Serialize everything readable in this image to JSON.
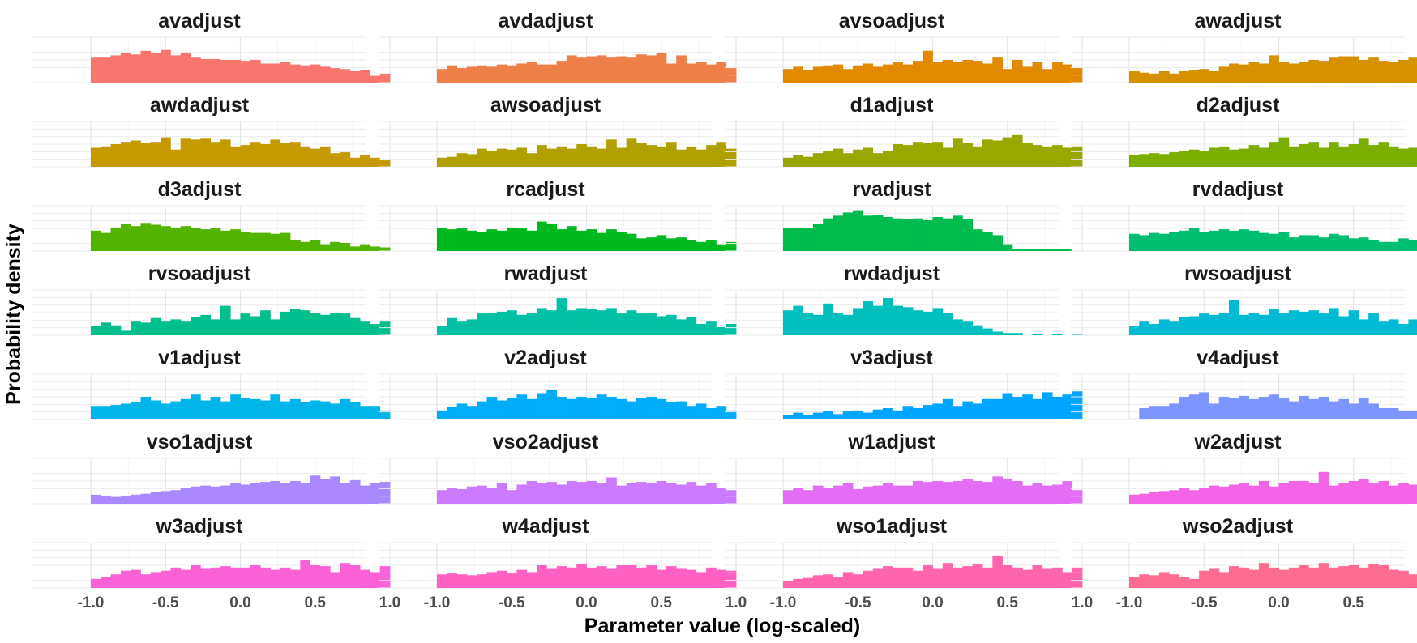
{
  "chart_data": {
    "type": "bar",
    "xlabel": "Parameter value (log-scaled)",
    "ylabel": "Probability density",
    "xlim": [
      -1.0,
      1.0
    ],
    "x_ticks": [
      "-1.0",
      "-0.5",
      "0.0",
      "0.5",
      "1.0"
    ],
    "bins": 30,
    "grid": true,
    "legend": "none",
    "facets": [
      {
        "name": "avadjust",
        "color": "#F8766D",
        "values": [
          0.55,
          0.55,
          0.6,
          0.65,
          0.62,
          0.7,
          0.65,
          0.72,
          0.6,
          0.65,
          0.55,
          0.52,
          0.52,
          0.5,
          0.5,
          0.48,
          0.5,
          0.42,
          0.42,
          0.45,
          0.4,
          0.38,
          0.4,
          0.35,
          0.32,
          0.3,
          0.25,
          0.28,
          0.15,
          0.2
        ]
      },
      {
        "name": "avdadjust",
        "color": "#EF7F49",
        "values": [
          0.3,
          0.38,
          0.32,
          0.35,
          0.38,
          0.35,
          0.4,
          0.38,
          0.42,
          0.45,
          0.4,
          0.4,
          0.48,
          0.6,
          0.55,
          0.58,
          0.6,
          0.55,
          0.58,
          0.55,
          0.62,
          0.6,
          0.65,
          0.42,
          0.6,
          0.42,
          0.45,
          0.4,
          0.45,
          0.32
        ]
      },
      {
        "name": "avsoadjust",
        "color": "#E38900",
        "values": [
          0.3,
          0.35,
          0.28,
          0.35,
          0.38,
          0.4,
          0.3,
          0.38,
          0.42,
          0.35,
          0.4,
          0.45,
          0.4,
          0.48,
          0.7,
          0.45,
          0.5,
          0.45,
          0.5,
          0.48,
          0.42,
          0.55,
          0.3,
          0.5,
          0.35,
          0.45,
          0.3,
          0.45,
          0.4,
          0.32
        ]
      },
      {
        "name": "awadjust",
        "color": "#D69100",
        "values": [
          0.25,
          0.22,
          0.2,
          0.25,
          0.2,
          0.25,
          0.28,
          0.3,
          0.25,
          0.35,
          0.42,
          0.4,
          0.45,
          0.42,
          0.6,
          0.45,
          0.42,
          0.45,
          0.5,
          0.48,
          0.55,
          0.58,
          0.58,
          0.5,
          0.55,
          0.48,
          0.45,
          0.5,
          0.55,
          0.35
        ]
      },
      {
        "name": "awdadjust",
        "color": "#C49A00",
        "values": [
          0.42,
          0.45,
          0.5,
          0.55,
          0.58,
          0.52,
          0.55,
          0.65,
          0.38,
          0.62,
          0.6,
          0.62,
          0.55,
          0.6,
          0.45,
          0.48,
          0.55,
          0.5,
          0.6,
          0.52,
          0.55,
          0.45,
          0.4,
          0.45,
          0.3,
          0.32,
          0.2,
          0.25,
          0.2,
          0.15
        ]
      },
      {
        "name": "awsoadjust",
        "color": "#B0A100",
        "values": [
          0.2,
          0.22,
          0.3,
          0.28,
          0.4,
          0.35,
          0.4,
          0.38,
          0.42,
          0.3,
          0.48,
          0.4,
          0.45,
          0.4,
          0.5,
          0.45,
          0.4,
          0.6,
          0.42,
          0.62,
          0.52,
          0.48,
          0.45,
          0.55,
          0.38,
          0.45,
          0.38,
          0.48,
          0.55,
          0.4
        ]
      },
      {
        "name": "d1adjust",
        "color": "#99A800",
        "values": [
          0.2,
          0.25,
          0.22,
          0.3,
          0.35,
          0.4,
          0.3,
          0.38,
          0.42,
          0.3,
          0.35,
          0.5,
          0.48,
          0.55,
          0.52,
          0.55,
          0.42,
          0.62,
          0.52,
          0.45,
          0.6,
          0.58,
          0.65,
          0.7,
          0.52,
          0.48,
          0.45,
          0.48,
          0.42,
          0.45
        ]
      },
      {
        "name": "d2adjust",
        "color": "#7CAE00",
        "values": [
          0.25,
          0.28,
          0.3,
          0.28,
          0.32,
          0.35,
          0.38,
          0.35,
          0.42,
          0.45,
          0.38,
          0.4,
          0.48,
          0.42,
          0.55,
          0.65,
          0.45,
          0.5,
          0.55,
          0.42,
          0.55,
          0.45,
          0.5,
          0.62,
          0.48,
          0.55,
          0.45,
          0.4,
          0.42,
          0.3
        ]
      },
      {
        "name": "d3adjust",
        "color": "#53B400",
        "values": [
          0.45,
          0.4,
          0.52,
          0.6,
          0.55,
          0.62,
          0.58,
          0.55,
          0.52,
          0.55,
          0.5,
          0.48,
          0.5,
          0.45,
          0.48,
          0.42,
          0.4,
          0.4,
          0.38,
          0.4,
          0.25,
          0.2,
          0.25,
          0.15,
          0.2,
          0.18,
          0.1,
          0.15,
          0.1,
          0.08
        ]
      },
      {
        "name": "rcadjust",
        "color": "#00B81F",
        "values": [
          0.5,
          0.48,
          0.5,
          0.45,
          0.42,
          0.48,
          0.45,
          0.52,
          0.5,
          0.45,
          0.65,
          0.6,
          0.48,
          0.55,
          0.45,
          0.48,
          0.4,
          0.48,
          0.42,
          0.38,
          0.28,
          0.3,
          0.35,
          0.28,
          0.3,
          0.25,
          0.2,
          0.25,
          0.15,
          0.2
        ]
      },
      {
        "name": "rvadjust",
        "color": "#00BB4E",
        "values": [
          0.5,
          0.52,
          0.5,
          0.6,
          0.72,
          0.78,
          0.85,
          0.9,
          0.78,
          0.8,
          0.75,
          0.72,
          0.7,
          0.72,
          0.68,
          0.75,
          0.72,
          0.78,
          0.7,
          0.48,
          0.42,
          0.35,
          0.15,
          0.05,
          0.05,
          0.05,
          0.05,
          0.05,
          0.05,
          0.0
        ]
      },
      {
        "name": "rvdadjust",
        "color": "#00BE70",
        "values": [
          0.38,
          0.35,
          0.4,
          0.38,
          0.42,
          0.45,
          0.5,
          0.42,
          0.45,
          0.48,
          0.45,
          0.48,
          0.45,
          0.4,
          0.38,
          0.42,
          0.3,
          0.35,
          0.35,
          0.3,
          0.38,
          0.35,
          0.28,
          0.3,
          0.25,
          0.2,
          0.2,
          0.28,
          0.25,
          0.25
        ]
      },
      {
        "name": "rvsoadjust",
        "color": "#00BF8C",
        "values": [
          0.2,
          0.28,
          0.22,
          0.1,
          0.3,
          0.28,
          0.38,
          0.3,
          0.35,
          0.3,
          0.4,
          0.45,
          0.35,
          0.65,
          0.35,
          0.48,
          0.42,
          0.55,
          0.35,
          0.52,
          0.58,
          0.55,
          0.5,
          0.45,
          0.5,
          0.48,
          0.38,
          0.3,
          0.25,
          0.3
        ]
      },
      {
        "name": "rwadjust",
        "color": "#00C0A5",
        "values": [
          0.2,
          0.38,
          0.3,
          0.35,
          0.48,
          0.5,
          0.52,
          0.55,
          0.45,
          0.5,
          0.6,
          0.55,
          0.82,
          0.55,
          0.6,
          0.58,
          0.55,
          0.6,
          0.48,
          0.55,
          0.48,
          0.5,
          0.42,
          0.45,
          0.35,
          0.4,
          0.25,
          0.3,
          0.18,
          0.25
        ]
      },
      {
        "name": "rwdadjust",
        "color": "#00BFBC",
        "values": [
          0.55,
          0.65,
          0.5,
          0.45,
          0.7,
          0.5,
          0.45,
          0.6,
          0.75,
          0.65,
          0.82,
          0.65,
          0.62,
          0.55,
          0.52,
          0.6,
          0.5,
          0.35,
          0.3,
          0.22,
          0.15,
          0.08,
          0.05,
          0.05,
          0.0,
          0.03,
          0.0,
          0.02,
          0.0,
          0.03
        ]
      },
      {
        "name": "rwsoadjust",
        "color": "#00BBD3",
        "values": [
          0.2,
          0.3,
          0.25,
          0.35,
          0.3,
          0.4,
          0.42,
          0.48,
          0.45,
          0.5,
          0.78,
          0.45,
          0.5,
          0.45,
          0.58,
          0.5,
          0.55,
          0.52,
          0.55,
          0.48,
          0.6,
          0.42,
          0.55,
          0.35,
          0.5,
          0.3,
          0.35,
          0.25,
          0.35,
          0.2
        ]
      },
      {
        "name": "v1adjust",
        "color": "#00B5E9",
        "values": [
          0.3,
          0.3,
          0.32,
          0.35,
          0.38,
          0.5,
          0.42,
          0.35,
          0.4,
          0.45,
          0.55,
          0.42,
          0.5,
          0.4,
          0.55,
          0.48,
          0.45,
          0.42,
          0.55,
          0.4,
          0.45,
          0.38,
          0.42,
          0.4,
          0.35,
          0.45,
          0.38,
          0.3,
          0.3,
          0.2
        ]
      },
      {
        "name": "v2adjust",
        "color": "#00ADFA",
        "values": [
          0.2,
          0.28,
          0.35,
          0.3,
          0.4,
          0.5,
          0.42,
          0.48,
          0.55,
          0.45,
          0.58,
          0.65,
          0.5,
          0.45,
          0.5,
          0.48,
          0.55,
          0.5,
          0.45,
          0.4,
          0.48,
          0.5,
          0.45,
          0.38,
          0.4,
          0.3,
          0.35,
          0.25,
          0.3,
          0.2
        ]
      },
      {
        "name": "v3adjust",
        "color": "#00A5FF",
        "values": [
          0.1,
          0.15,
          0.1,
          0.15,
          0.18,
          0.12,
          0.18,
          0.2,
          0.15,
          0.22,
          0.25,
          0.2,
          0.3,
          0.25,
          0.32,
          0.35,
          0.45,
          0.3,
          0.4,
          0.35,
          0.45,
          0.45,
          0.58,
          0.5,
          0.55,
          0.45,
          0.6,
          0.5,
          0.55,
          0.62
        ]
      },
      {
        "name": "v4adjust",
        "color": "#7D96FF",
        "values": [
          0.02,
          0.25,
          0.3,
          0.3,
          0.35,
          0.5,
          0.55,
          0.6,
          0.35,
          0.5,
          0.48,
          0.52,
          0.45,
          0.5,
          0.55,
          0.48,
          0.4,
          0.52,
          0.45,
          0.5,
          0.4,
          0.45,
          0.35,
          0.48,
          0.35,
          0.25,
          0.25,
          0.2,
          0.2,
          0.2
        ]
      },
      {
        "name": "vso1adjust",
        "color": "#AA88FF",
        "values": [
          0.2,
          0.18,
          0.15,
          0.18,
          0.2,
          0.22,
          0.25,
          0.28,
          0.3,
          0.35,
          0.38,
          0.4,
          0.38,
          0.4,
          0.45,
          0.42,
          0.45,
          0.48,
          0.5,
          0.45,
          0.5,
          0.45,
          0.62,
          0.55,
          0.6,
          0.45,
          0.52,
          0.4,
          0.45,
          0.48
        ]
      },
      {
        "name": "vso2adjust",
        "color": "#CC7AFF",
        "values": [
          0.3,
          0.35,
          0.32,
          0.38,
          0.4,
          0.35,
          0.45,
          0.3,
          0.42,
          0.5,
          0.45,
          0.48,
          0.42,
          0.5,
          0.48,
          0.5,
          0.45,
          0.58,
          0.4,
          0.45,
          0.48,
          0.45,
          0.5,
          0.45,
          0.42,
          0.48,
          0.4,
          0.45,
          0.35,
          0.3
        ]
      },
      {
        "name": "w1adjust",
        "color": "#E26EF6",
        "values": [
          0.3,
          0.35,
          0.3,
          0.4,
          0.35,
          0.4,
          0.45,
          0.32,
          0.38,
          0.4,
          0.45,
          0.4,
          0.4,
          0.5,
          0.48,
          0.5,
          0.48,
          0.5,
          0.55,
          0.5,
          0.48,
          0.6,
          0.55,
          0.5,
          0.4,
          0.45,
          0.4,
          0.42,
          0.5,
          0.3
        ]
      },
      {
        "name": "w2adjust",
        "color": "#F365E6",
        "values": [
          0.2,
          0.22,
          0.25,
          0.28,
          0.3,
          0.35,
          0.3,
          0.35,
          0.4,
          0.38,
          0.42,
          0.45,
          0.4,
          0.5,
          0.38,
          0.45,
          0.5,
          0.5,
          0.45,
          0.7,
          0.4,
          0.45,
          0.5,
          0.55,
          0.45,
          0.5,
          0.4,
          0.45,
          0.42,
          0.6
        ]
      },
      {
        "name": "w3adjust",
        "color": "#FB61D7",
        "values": [
          0.2,
          0.25,
          0.3,
          0.38,
          0.4,
          0.3,
          0.35,
          0.38,
          0.45,
          0.4,
          0.5,
          0.42,
          0.45,
          0.48,
          0.45,
          0.45,
          0.5,
          0.45,
          0.4,
          0.45,
          0.4,
          0.62,
          0.5,
          0.48,
          0.35,
          0.55,
          0.5,
          0.4,
          0.35,
          0.48
        ]
      },
      {
        "name": "w4adjust",
        "color": "#FF61C3",
        "values": [
          0.3,
          0.32,
          0.3,
          0.28,
          0.3,
          0.35,
          0.38,
          0.32,
          0.4,
          0.35,
          0.5,
          0.42,
          0.48,
          0.45,
          0.52,
          0.45,
          0.48,
          0.42,
          0.5,
          0.5,
          0.45,
          0.5,
          0.4,
          0.48,
          0.42,
          0.4,
          0.35,
          0.45,
          0.4,
          0.38
        ]
      },
      {
        "name": "wso1adjust",
        "color": "#FF65AC",
        "values": [
          0.15,
          0.2,
          0.22,
          0.28,
          0.3,
          0.25,
          0.35,
          0.3,
          0.38,
          0.42,
          0.48,
          0.45,
          0.45,
          0.38,
          0.5,
          0.42,
          0.55,
          0.45,
          0.48,
          0.52,
          0.45,
          0.7,
          0.5,
          0.45,
          0.4,
          0.5,
          0.42,
          0.45,
          0.35,
          0.45
        ]
      },
      {
        "name": "wso2adjust",
        "color": "#FF6C91",
        "values": [
          0.25,
          0.3,
          0.28,
          0.35,
          0.3,
          0.25,
          0.2,
          0.38,
          0.42,
          0.35,
          0.48,
          0.45,
          0.4,
          0.55,
          0.45,
          0.4,
          0.45,
          0.5,
          0.45,
          0.55,
          0.45,
          0.48,
          0.5,
          0.45,
          0.52,
          0.5,
          0.4,
          0.38,
          0.3,
          0.35
        ]
      }
    ]
  }
}
